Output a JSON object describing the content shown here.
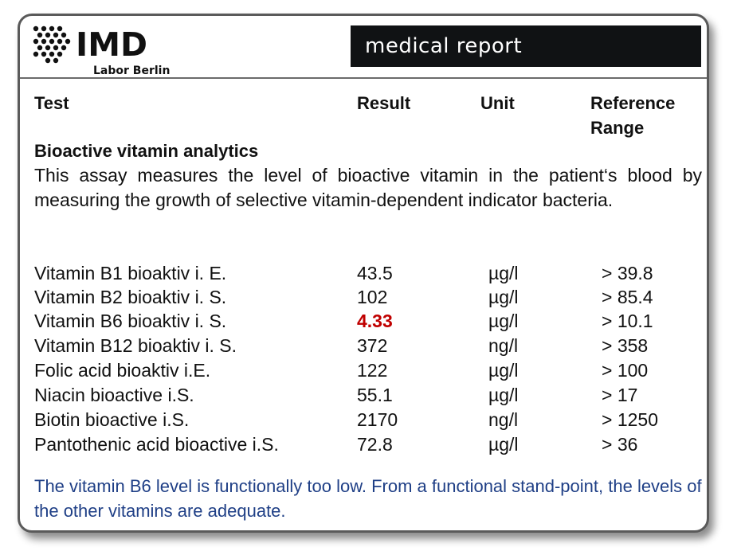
{
  "header": {
    "logo_name": "IMD",
    "logo_sub": "Labor Berlin",
    "report_title": "medical report"
  },
  "columns": {
    "test": "Test",
    "result": "Result",
    "unit": "Unit",
    "reference_line1": "Reference",
    "reference_line2": "Range"
  },
  "section": {
    "title": "Bioactive vitamin analytics",
    "description": "This assay measures the level of bioactive vitamin in the patient‘s blood by measuring the growth of selective vitamin-dependent indicator bacteria."
  },
  "results": [
    {
      "name": "Vitamin B1 bioaktiv i. E.",
      "result": "43.5",
      "unit": "µg/l",
      "reference": "> 39.8",
      "flag": "normal"
    },
    {
      "name": "Vitamin B2 bioaktiv i. S.",
      "result": "102",
      "unit": "µg/l",
      "reference": "> 85.4",
      "flag": "normal"
    },
    {
      "name": "Vitamin B6 bioaktiv i. S.",
      "result": "4.33",
      "unit": "µg/l",
      "reference": "> 10.1",
      "flag": "low"
    },
    {
      "name": "Vitamin B12 bioaktiv i. S.",
      "result": "372",
      "unit": "ng/l",
      "reference": "> 358",
      "flag": "normal"
    },
    {
      "name": "Folic acid bioaktiv i.E.",
      "result": "122",
      "unit": "µg/l",
      "reference": "> 100",
      "flag": "normal"
    },
    {
      "name": "Niacin bioactive i.S.",
      "result": "55.1",
      "unit": "µg/l",
      "reference": "> 17",
      "flag": "normal"
    },
    {
      "name": "Biotin bioactive i.S.",
      "result": "2170",
      "unit": "ng/l",
      "reference": "> 1250",
      "flag": "normal"
    },
    {
      "name": "Pantothenic acid bioactive i.S.",
      "result": "72.8",
      "unit": "µg/l",
      "reference": "> 36",
      "flag": "normal"
    }
  ],
  "conclusion": "The vitamin B6 level is functionally too low. From a functional stand-point, the levels of the other vitamins are adequate.",
  "colors": {
    "low_result": "#c00000",
    "conclusion_text": "#1f3f86",
    "banner_bg": "#101214"
  }
}
